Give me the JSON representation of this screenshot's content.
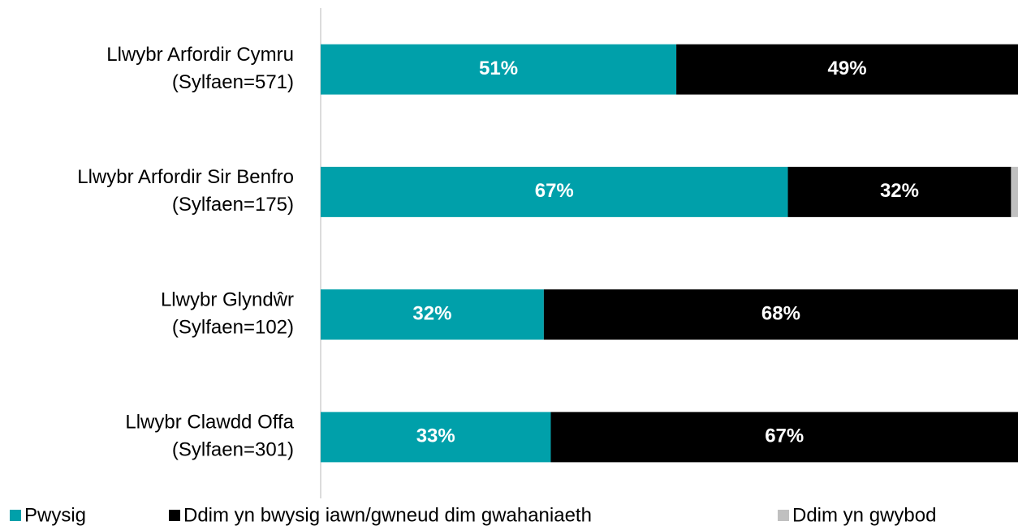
{
  "chart_data": {
    "type": "bar",
    "orientation": "horizontal",
    "stacked": true,
    "categories": [
      [
        "Llwybr Arfordir Cymru",
        "(Sylfaen=571)"
      ],
      [
        "Llwybr Arfordir Sir Benfro",
        "(Sylfaen=175)"
      ],
      [
        "Llwybr Glyndŵr",
        "(Sylfaen=102)"
      ],
      [
        "Llwybr Clawdd Offa",
        "(Sylfaen=301)"
      ]
    ],
    "series": [
      {
        "name": "Pwysig",
        "color": "#00a0aa",
        "values": [
          51,
          67,
          32,
          33
        ],
        "value_labels": [
          "51%",
          "67%",
          "32%",
          "33%"
        ]
      },
      {
        "name": "Ddim yn bwysig iawn/gwneud dim gwahaniaeth",
        "color": "#000000",
        "values": [
          49,
          32,
          68,
          67
        ],
        "value_labels": [
          "49%",
          "32%",
          "68%",
          "67%"
        ]
      },
      {
        "name": "Ddim yn gwybod",
        "color": "#c0c0c0",
        "values": [
          0,
          1,
          0,
          0.5
        ]
      }
    ],
    "xlim": [
      0,
      100
    ],
    "legend": "bottom"
  }
}
